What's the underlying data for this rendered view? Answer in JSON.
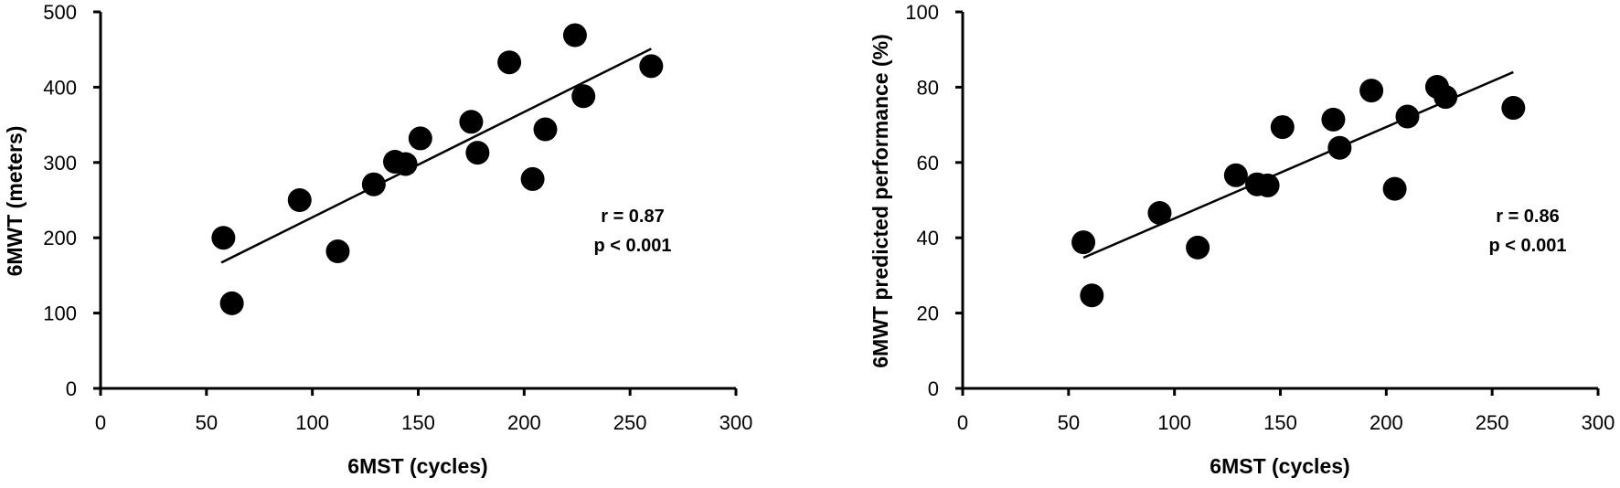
{
  "chart_data": [
    {
      "type": "scatter",
      "title": "",
      "xlabel": "6MST (cycles)",
      "ylabel": "6MWT (meters)",
      "xlim": [
        0,
        300
      ],
      "ylim": [
        0,
        500
      ],
      "xticks": [
        0,
        50,
        100,
        150,
        200,
        250,
        300
      ],
      "yticks": [
        0,
        100,
        200,
        300,
        400,
        500
      ],
      "grid": false,
      "legend": null,
      "points": [
        {
          "x": 58,
          "y": 200
        },
        {
          "x": 62,
          "y": 113
        },
        {
          "x": 94,
          "y": 250
        },
        {
          "x": 112,
          "y": 182
        },
        {
          "x": 129,
          "y": 271
        },
        {
          "x": 139,
          "y": 301
        },
        {
          "x": 144,
          "y": 298
        },
        {
          "x": 151,
          "y": 332
        },
        {
          "x": 175,
          "y": 354
        },
        {
          "x": 178,
          "y": 313
        },
        {
          "x": 193,
          "y": 433
        },
        {
          "x": 204,
          "y": 278
        },
        {
          "x": 210,
          "y": 344
        },
        {
          "x": 224,
          "y": 469
        },
        {
          "x": 228,
          "y": 388
        },
        {
          "x": 260,
          "y": 428
        }
      ],
      "trendline": {
        "x1": 57,
        "y1": 167,
        "x2": 260,
        "y2": 451
      },
      "annotations": [
        "r = 0.87",
        "p < 0.001"
      ]
    },
    {
      "type": "scatter",
      "title": "",
      "xlabel": "6MST (cycles)",
      "ylabel": "6MWT predicted performance (%)",
      "xlim": [
        0,
        300
      ],
      "ylim": [
        0,
        100
      ],
      "xticks": [
        0,
        50,
        100,
        150,
        200,
        250,
        300
      ],
      "yticks": [
        0,
        20,
        40,
        60,
        80,
        100
      ],
      "grid": false,
      "legend": null,
      "points": [
        {
          "x": 57,
          "y": 38.8
        },
        {
          "x": 61,
          "y": 24.7
        },
        {
          "x": 93,
          "y": 46.6
        },
        {
          "x": 111,
          "y": 37.4
        },
        {
          "x": 129,
          "y": 56.6
        },
        {
          "x": 139,
          "y": 54.2
        },
        {
          "x": 144,
          "y": 53.9
        },
        {
          "x": 151,
          "y": 69.4
        },
        {
          "x": 175,
          "y": 71.4
        },
        {
          "x": 178,
          "y": 63.9
        },
        {
          "x": 193,
          "y": 79.1
        },
        {
          "x": 204,
          "y": 53.0
        },
        {
          "x": 210,
          "y": 72.2
        },
        {
          "x": 224,
          "y": 80.1
        },
        {
          "x": 228,
          "y": 77.4
        },
        {
          "x": 260,
          "y": 74.5
        }
      ],
      "trendline": {
        "x1": 57,
        "y1": 34.7,
        "x2": 260,
        "y2": 84
      },
      "annotations": [
        "r = 0.86",
        "p < 0.001"
      ]
    }
  ],
  "panels": [
    {
      "x_axis_title": "6MST (cycles)",
      "y_axis_title": "6MWT (meters)",
      "stat_r": "r = 0.87",
      "stat_p": "p < 0.001"
    },
    {
      "x_axis_title": "6MST (cycles)",
      "y_axis_title": "6MWT predicted performance (%)",
      "stat_r": "r = 0.86",
      "stat_p": "p < 0.001"
    }
  ],
  "colors": {
    "marker": "#000000",
    "axis": "#000000",
    "background": "#ffffff"
  }
}
